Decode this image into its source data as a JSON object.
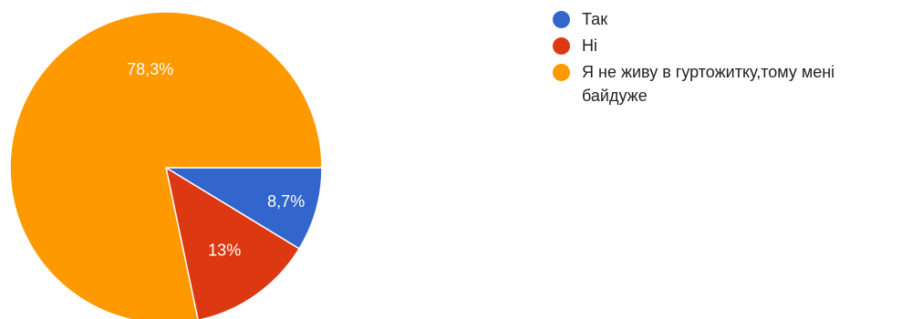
{
  "chart_data": {
    "type": "pie",
    "slices": [
      {
        "name": "Так",
        "value": 8.7,
        "label": "8,7%",
        "color": "#3366cc"
      },
      {
        "name": "Ні",
        "value": 13,
        "label": "13%",
        "color": "#dc3912"
      },
      {
        "name": "Я не живу в гуртожитку,тому мені байдуже",
        "value": 78.3,
        "label": "78,3%",
        "color": "#ff9900"
      }
    ],
    "legend_position": "right"
  }
}
